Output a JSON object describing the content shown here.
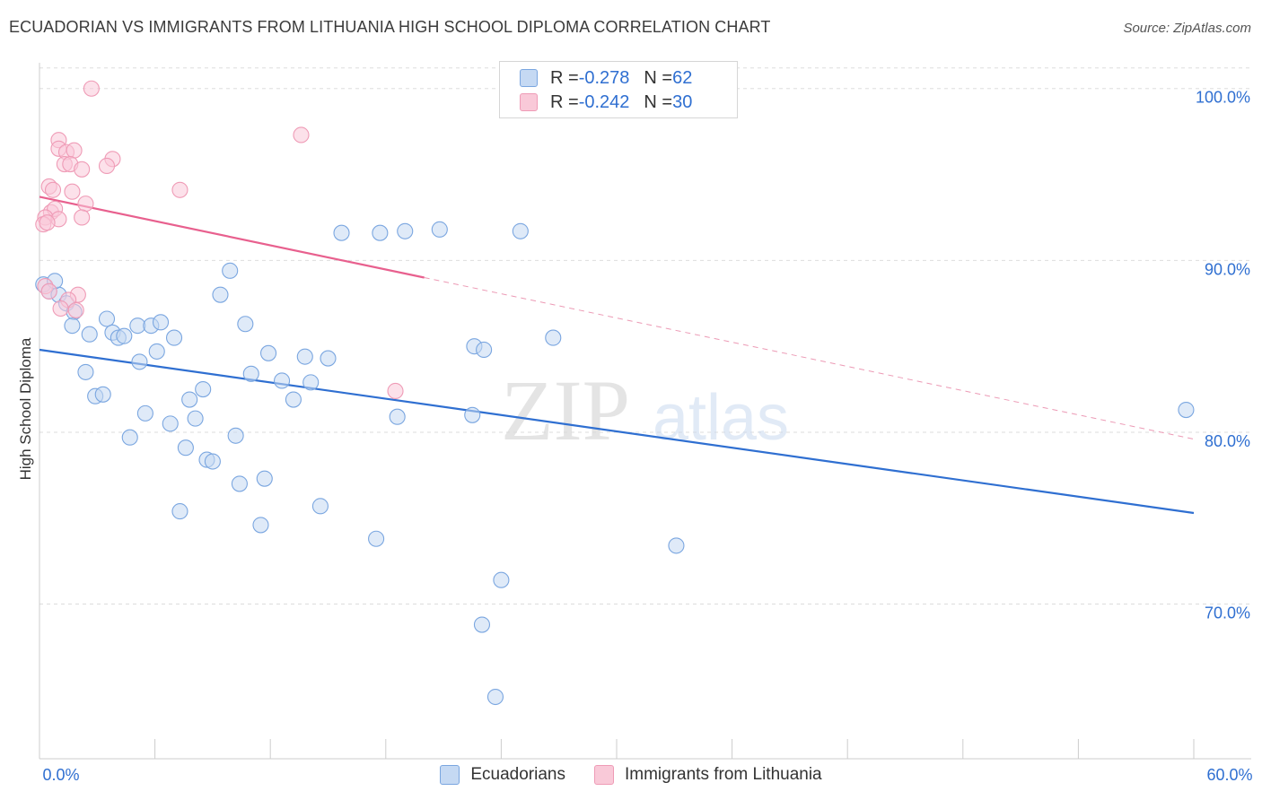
{
  "title": "ECUADORIAN VS IMMIGRANTS FROM LITHUANIA HIGH SCHOOL DIPLOMA CORRELATION CHART",
  "source": "Source: ZipAtlas.com",
  "watermark": {
    "zip": "ZIP",
    "atlas": "atlas"
  },
  "legend": {
    "rows": [
      {
        "r_label": "R = ",
        "r_value": "-0.278",
        "n_label": "N = ",
        "n_value": "62",
        "fill": "#c5d9f3",
        "stroke": "#7aa6e0"
      },
      {
        "r_label": "R = ",
        "r_value": "-0.242",
        "n_label": "N = ",
        "n_value": "30",
        "fill": "#f9c9d8",
        "stroke": "#ef9bb6"
      }
    ]
  },
  "bottom_legend": [
    {
      "label": "Ecuadorians",
      "fill": "#c5d9f3",
      "stroke": "#7aa6e0"
    },
    {
      "label": "Immigrants from Lithuania",
      "fill": "#f9c9d8",
      "stroke": "#ef9bb6"
    }
  ],
  "chart_data": {
    "type": "scatter",
    "title": "ECUADORIAN VS IMMIGRANTS FROM LITHUANIA HIGH SCHOOL DIPLOMA CORRELATION CHART",
    "xlabel": "",
    "ylabel": "High School Diploma",
    "xlim": [
      0,
      60
    ],
    "ylim": [
      61,
      101.5
    ],
    "x_tick_labels": [
      "0.0%",
      "60.0%"
    ],
    "y_ticks": [
      70,
      80,
      90,
      100
    ],
    "y_tick_labels": [
      "70.0%",
      "80.0%",
      "90.0%",
      "100.0%"
    ],
    "grid": true,
    "legend_position": "top-center",
    "series": [
      {
        "name": "Ecuadorians",
        "color": "#2f6fd1",
        "fill": "#c5d9f3",
        "trend": {
          "x": [
            0,
            60
          ],
          "y": [
            84.8,
            75.3
          ],
          "dashed_from": null
        },
        "points": [
          [
            0.2,
            88.6
          ],
          [
            0.5,
            88.2
          ],
          [
            1.0,
            88.0
          ],
          [
            1.4,
            87.5
          ],
          [
            1.8,
            87.0
          ],
          [
            1.7,
            86.2
          ],
          [
            2.6,
            85.7
          ],
          [
            2.4,
            83.5
          ],
          [
            2.9,
            82.1
          ],
          [
            3.3,
            82.2
          ],
          [
            3.5,
            86.6
          ],
          [
            3.8,
            85.8
          ],
          [
            4.1,
            85.5
          ],
          [
            4.4,
            85.6
          ],
          [
            4.7,
            79.7
          ],
          [
            5.1,
            86.2
          ],
          [
            5.2,
            84.1
          ],
          [
            5.5,
            81.1
          ],
          [
            5.8,
            86.2
          ],
          [
            6.1,
            84.7
          ],
          [
            6.3,
            86.4
          ],
          [
            6.8,
            80.5
          ],
          [
            7.0,
            85.5
          ],
          [
            7.3,
            75.4
          ],
          [
            7.6,
            79.1
          ],
          [
            7.8,
            81.9
          ],
          [
            8.1,
            80.8
          ],
          [
            8.5,
            82.5
          ],
          [
            8.7,
            78.4
          ],
          [
            9.0,
            78.3
          ],
          [
            9.4,
            88.0
          ],
          [
            9.9,
            89.4
          ],
          [
            10.2,
            79.8
          ],
          [
            10.4,
            77.0
          ],
          [
            10.7,
            86.3
          ],
          [
            11.0,
            83.4
          ],
          [
            11.5,
            74.6
          ],
          [
            11.7,
            77.3
          ],
          [
            11.9,
            84.6
          ],
          [
            12.6,
            83.0
          ],
          [
            13.2,
            81.9
          ],
          [
            13.8,
            84.4
          ],
          [
            14.1,
            82.9
          ],
          [
            14.6,
            75.7
          ],
          [
            15.0,
            84.3
          ],
          [
            15.7,
            91.6
          ],
          [
            17.5,
            73.8
          ],
          [
            17.7,
            91.6
          ],
          [
            18.6,
            80.9
          ],
          [
            19.0,
            91.7
          ],
          [
            20.8,
            91.8
          ],
          [
            22.5,
            81.0
          ],
          [
            22.6,
            85.0
          ],
          [
            23.1,
            84.8
          ],
          [
            23.0,
            68.8
          ],
          [
            24.0,
            71.4
          ],
          [
            23.7,
            64.6
          ],
          [
            25.0,
            91.7
          ],
          [
            26.7,
            85.5
          ],
          [
            33.1,
            73.4
          ],
          [
            59.6,
            81.3
          ],
          [
            0.8,
            88.8
          ]
        ]
      },
      {
        "name": "Immigrants from Lithuania",
        "color": "#e8608e",
        "fill": "#f9c9d8",
        "trend": {
          "x": [
            0,
            20
          ],
          "y": [
            93.7,
            89.0
          ],
          "dashed_to": [
            60,
            79.6
          ]
        },
        "points": [
          [
            2.7,
            100.0
          ],
          [
            1.0,
            97.0
          ],
          [
            1.0,
            96.5
          ],
          [
            1.4,
            96.3
          ],
          [
            1.8,
            96.4
          ],
          [
            3.8,
            95.9
          ],
          [
            1.3,
            95.6
          ],
          [
            1.6,
            95.6
          ],
          [
            2.2,
            95.3
          ],
          [
            3.5,
            95.5
          ],
          [
            0.5,
            94.3
          ],
          [
            0.7,
            94.1
          ],
          [
            1.7,
            94.0
          ],
          [
            7.3,
            94.1
          ],
          [
            2.4,
            93.3
          ],
          [
            0.6,
            92.8
          ],
          [
            0.8,
            93.0
          ],
          [
            0.3,
            92.5
          ],
          [
            1.0,
            92.4
          ],
          [
            2.2,
            92.5
          ],
          [
            0.2,
            92.1
          ],
          [
            0.4,
            92.2
          ],
          [
            0.3,
            88.5
          ],
          [
            0.5,
            88.2
          ],
          [
            2.0,
            88.0
          ],
          [
            1.5,
            87.7
          ],
          [
            1.1,
            87.2
          ],
          [
            1.9,
            87.1
          ],
          [
            13.6,
            97.3
          ],
          [
            18.5,
            82.4
          ]
        ]
      }
    ]
  }
}
